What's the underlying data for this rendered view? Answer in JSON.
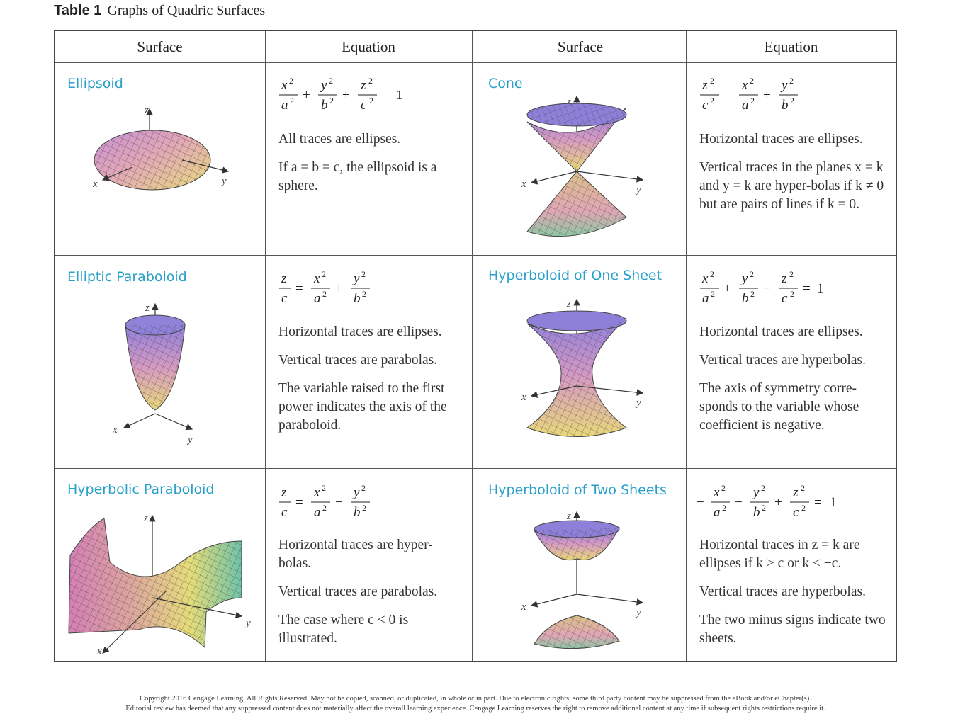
{
  "caption": {
    "label": "Table 1",
    "title": "Graphs of Quadric Surfaces"
  },
  "headers": [
    "Surface",
    "Equation",
    "Surface",
    "Equation"
  ],
  "cells": [
    {
      "name": "Ellipsoid",
      "lines": [
        "All traces are ellipses.",
        "If a = b = c, the ellipsoid is a sphere."
      ]
    },
    {
      "name": "Cone",
      "lines": [
        "Horizontal traces are ellipses.",
        "Vertical traces in the planes x = k and y = k are hyper-bolas if k ≠ 0 but are pairs of lines if k = 0."
      ]
    },
    {
      "name": "Elliptic Paraboloid",
      "lines": [
        "Horizontal traces are ellipses.",
        "Vertical traces are parabolas.",
        "The variable raised to the first power indicates the axis of the paraboloid."
      ]
    },
    {
      "name": "Hyperboloid of One Sheet",
      "lines": [
        "Horizontal traces are ellipses.",
        "Vertical traces are hyperbolas.",
        "The axis of symmetry corre-sponds to the variable whose coefficient is negative."
      ]
    },
    {
      "name": "Hyperbolic Paraboloid",
      "lines": [
        "Horizontal traces are hyper-bolas.",
        "Vertical traces are parabolas.",
        "The case where c < 0 is illustrated."
      ]
    },
    {
      "name": "Hyperboloid of Two Sheets",
      "lines": [
        "Horizontal traces in z = k are ellipses if k > c or k < −c.",
        "Vertical traces are hyperbolas.",
        "The two minus signs indicate two sheets."
      ]
    }
  ],
  "axes": {
    "x": "x",
    "y": "y",
    "z": "z"
  },
  "equations": {
    "ellipsoid": {
      "t1": "x",
      "b1": "a",
      "op1": "+",
      "t2": "y",
      "b2": "b",
      "op2": "+",
      "t3": "z",
      "b3": "c",
      "eq": "=",
      "rhs": "1",
      "exp": "2"
    },
    "cone": {
      "t1": "z",
      "b1": "c",
      "eq": "=",
      "t2": "x",
      "b2": "a",
      "op1": "+",
      "t3": "y",
      "b3": "b",
      "exp": "2"
    },
    "elliptic_paraboloid": {
      "l1": "z",
      "lb1": "c",
      "eq": "=",
      "t2": "x",
      "b2": "a",
      "op1": "+",
      "t3": "y",
      "b3": "b",
      "exp": "2"
    },
    "one_sheet": {
      "t1": "x",
      "b1": "a",
      "op1": "+",
      "t2": "y",
      "b2": "b",
      "op2": "−",
      "t3": "z",
      "b3": "c",
      "eq": "=",
      "rhs": "1",
      "exp": "2"
    },
    "hyperbolic_paraboloid": {
      "l1": "z",
      "lb1": "c",
      "eq": "=",
      "t2": "x",
      "b2": "a",
      "op1": "−",
      "t3": "y",
      "b3": "b",
      "exp": "2"
    },
    "two_sheets": {
      "neg": "−",
      "t1": "x",
      "b1": "a",
      "op1": "−",
      "t2": "y",
      "b2": "b",
      "op2": "+",
      "t3": "z",
      "b3": "c",
      "eq": "=",
      "rhs": "1",
      "exp": "2"
    }
  },
  "footer": {
    "line1": "Copyright 2016 Cengage Learning. All Rights Reserved. May not be copied, scanned, or duplicated, in whole or in part. Due to electronic rights, some third party content may be suppressed from the eBook and/or eChapter(s).",
    "line2": "Editorial review has deemed that any suppressed content does not materially affect the overall learning experience. Cengage Learning reserves the right to remove additional content at any time if subsequent rights restrictions require it."
  },
  "colors": {
    "title": "#2aa0c9",
    "surface_pink": "#e39bc8",
    "surface_purple": "#7f7ad8",
    "surface_yellow": "#e7dc7a",
    "surface_green": "#7fc7a0",
    "mesh": "#3a3a3a"
  }
}
